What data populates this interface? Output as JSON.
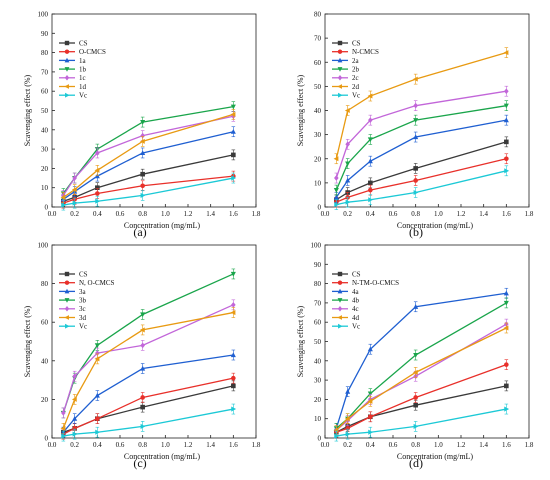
{
  "chart_data": [
    {
      "type": "line",
      "panel_label": "(a)",
      "xlabel": "Concentration (mg/mL)",
      "ylabel": "Scavenging effect (%)",
      "xlim": [
        0.0,
        1.8
      ],
      "ylim": [
        0,
        100
      ],
      "xticks": [
        "0.0",
        "0.2",
        "0.4",
        "0.6",
        "0.8",
        "1.0",
        "1.2",
        "1.4",
        "1.6",
        "1.8"
      ],
      "yticks": [
        "0",
        "10",
        "20",
        "30",
        "40",
        "50",
        "60",
        "70",
        "80",
        "90",
        "100"
      ],
      "x": [
        0.1,
        0.2,
        0.4,
        0.8,
        1.6
      ],
      "legend_position": "top-left",
      "series": [
        {
          "name": "CS",
          "color": "#3a3a3a",
          "marker": "square",
          "values": [
            3,
            5,
            10,
            17,
            27
          ]
        },
        {
          "name": "O-CMCS",
          "color": "#e8302a",
          "marker": "circle",
          "values": [
            2,
            4,
            7,
            11,
            16
          ]
        },
        {
          "name": "1a",
          "color": "#1f5fd1",
          "marker": "triangle-up",
          "values": [
            4,
            8,
            16,
            28,
            39
          ]
        },
        {
          "name": "1b",
          "color": "#1aa54b",
          "marker": "triangle-down",
          "values": [
            7,
            15,
            30,
            44,
            52
          ]
        },
        {
          "name": "1c",
          "color": "#c266d9",
          "marker": "diamond",
          "values": [
            6,
            15,
            28,
            37,
            47
          ]
        },
        {
          "name": "1d",
          "color": "#e89a12",
          "marker": "triangle-left",
          "values": [
            5,
            9,
            19,
            34,
            48
          ]
        },
        {
          "name": "Vc",
          "color": "#1cc9d6",
          "marker": "triangle-right",
          "values": [
            1,
            2,
            3,
            6,
            15
          ]
        }
      ]
    },
    {
      "type": "line",
      "panel_label": "(b)",
      "xlabel": "Concentration (mg/mL)",
      "ylabel": "Scavenging effect (%)",
      "xlim": [
        0.0,
        1.8
      ],
      "ylim": [
        0,
        80
      ],
      "xticks": [
        "0.0",
        "0.2",
        "0.4",
        "0.6",
        "0.8",
        "1.0",
        "1.2",
        "1.4",
        "1.6",
        "1.8"
      ],
      "yticks": [
        "0",
        "10",
        "20",
        "30",
        "40",
        "50",
        "60",
        "70",
        "80"
      ],
      "x": [
        0.1,
        0.2,
        0.4,
        0.8,
        1.6
      ],
      "legend_position": "top-left",
      "series": [
        {
          "name": "CS",
          "color": "#3a3a3a",
          "marker": "square",
          "values": [
            3,
            6,
            10,
            16,
            27
          ]
        },
        {
          "name": "N-CMCS",
          "color": "#e8302a",
          "marker": "circle",
          "values": [
            2,
            4,
            7,
            11,
            20
          ]
        },
        {
          "name": "2a",
          "color": "#1f5fd1",
          "marker": "triangle-up",
          "values": [
            4,
            11,
            19,
            29,
            36
          ]
        },
        {
          "name": "2b",
          "color": "#1aa54b",
          "marker": "triangle-down",
          "values": [
            7,
            18,
            28,
            36,
            42
          ]
        },
        {
          "name": "2c",
          "color": "#c266d9",
          "marker": "diamond",
          "values": [
            12,
            26,
            36,
            42,
            48
          ]
        },
        {
          "name": "2d",
          "color": "#e89a12",
          "marker": "triangle-left",
          "values": [
            20,
            40,
            46,
            53,
            64
          ]
        },
        {
          "name": "Vc",
          "color": "#1cc9d6",
          "marker": "triangle-right",
          "values": [
            1,
            2,
            3,
            6,
            15
          ]
        }
      ]
    },
    {
      "type": "line",
      "panel_label": "(c)",
      "xlabel": "Concentration (mg/mL)",
      "ylabel": "Scavenging effect (%)",
      "xlim": [
        0.0,
        1.8
      ],
      "ylim": [
        0,
        100
      ],
      "xticks": [
        "0.0",
        "0.2",
        "0.4",
        "0.6",
        "0.8",
        "1.0",
        "1.2",
        "1.4",
        "1.6",
        "1.8"
      ],
      "yticks": [
        "0",
        "20",
        "40",
        "60",
        "80",
        "100"
      ],
      "x": [
        0.1,
        0.2,
        0.4,
        0.8,
        1.6
      ],
      "legend_position": "top-left",
      "series": [
        {
          "name": "CS",
          "color": "#3a3a3a",
          "marker": "square",
          "values": [
            3,
            5,
            10,
            16,
            27
          ]
        },
        {
          "name": "N, O-CMCS",
          "color": "#e8302a",
          "marker": "circle",
          "values": [
            2,
            5,
            10,
            21,
            31
          ]
        },
        {
          "name": "3a",
          "color": "#1f5fd1",
          "marker": "triangle-up",
          "values": [
            3,
            10,
            22,
            36,
            43
          ]
        },
        {
          "name": "3b",
          "color": "#1aa54b",
          "marker": "triangle-down",
          "values": [
            13,
            31,
            48,
            64,
            85
          ]
        },
        {
          "name": "3c",
          "color": "#c266d9",
          "marker": "diamond",
          "values": [
            13,
            32,
            44,
            48,
            69
          ]
        },
        {
          "name": "3d",
          "color": "#e89a12",
          "marker": "triangle-left",
          "values": [
            5,
            20,
            41,
            56,
            65
          ]
        },
        {
          "name": "Vc",
          "color": "#1cc9d6",
          "marker": "triangle-right",
          "values": [
            1,
            2,
            3,
            6,
            15
          ]
        }
      ]
    },
    {
      "type": "line",
      "panel_label": "(d)",
      "xlabel": "Concentration (mg/mL)",
      "ylabel": "Scavenging effect (%)",
      "xlim": [
        0.0,
        1.8
      ],
      "ylim": [
        0,
        100
      ],
      "xticks": [
        "0.0",
        "0.2",
        "0.4",
        "0.6",
        "0.8",
        "1.0",
        "1.2",
        "1.4",
        "1.6",
        "1.8"
      ],
      "yticks": [
        "0",
        "10",
        "20",
        "30",
        "40",
        "50",
        "60",
        "70",
        "80",
        "90",
        "100"
      ],
      "x": [
        0.1,
        0.2,
        0.4,
        0.8,
        1.6
      ],
      "legend_position": "top-left",
      "series": [
        {
          "name": "CS",
          "color": "#3a3a3a",
          "marker": "square",
          "values": [
            3,
            6,
            11,
            17,
            27
          ]
        },
        {
          "name": "N-TM-O-CMCS",
          "color": "#e8302a",
          "marker": "circle",
          "values": [
            3,
            5,
            11,
            21,
            38
          ]
        },
        {
          "name": "4a",
          "color": "#1f5fd1",
          "marker": "triangle-up",
          "values": [
            5,
            24,
            46,
            68,
            75
          ]
        },
        {
          "name": "4b",
          "color": "#1aa54b",
          "marker": "triangle-down",
          "values": [
            5,
            10,
            23,
            43,
            70
          ]
        },
        {
          "name": "4c",
          "color": "#c266d9",
          "marker": "diamond",
          "values": [
            4,
            9,
            20,
            32,
            59
          ]
        },
        {
          "name": "4d",
          "color": "#e89a12",
          "marker": "triangle-left",
          "values": [
            4,
            10,
            19,
            34,
            57
          ]
        },
        {
          "name": "Vc",
          "color": "#1cc9d6",
          "marker": "triangle-right",
          "values": [
            1,
            2,
            3,
            6,
            15
          ]
        }
      ]
    }
  ]
}
